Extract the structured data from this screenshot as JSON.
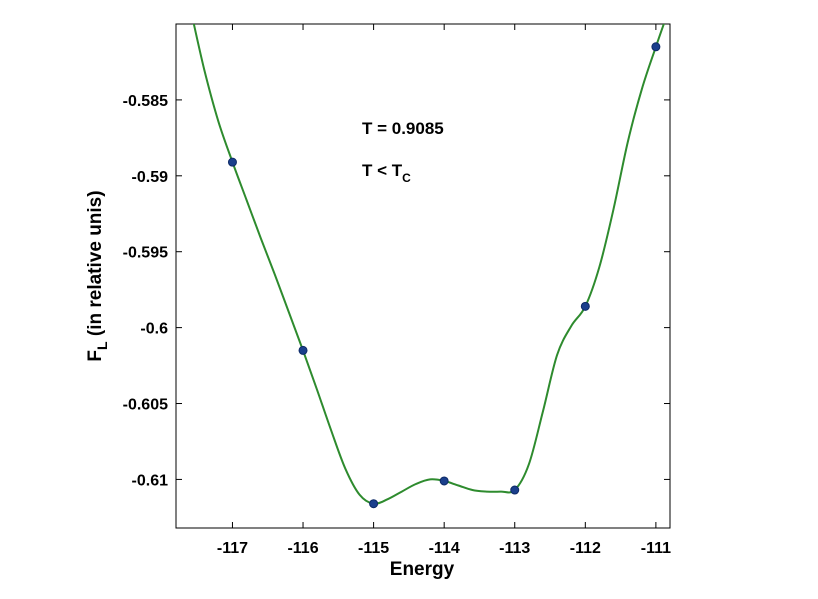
{
  "chart_data": {
    "type": "line",
    "xlabel": "Energy",
    "ylabel_main": "F",
    "ylabel_sub": "L",
    "ylabel_rest": " (in relative unis)",
    "xlim": [
      -117.8,
      -110.8
    ],
    "ylim": [
      -0.6132,
      -0.58
    ],
    "xticks": [
      -117,
      -116,
      -115,
      -114,
      -113,
      -112,
      -111
    ],
    "xtick_labels": [
      "-117",
      "-116",
      "-115",
      "-114",
      "-113",
      "-112",
      "-111"
    ],
    "yticks": [
      -0.585,
      -0.59,
      -0.595,
      -0.6,
      -0.605,
      -0.61
    ],
    "ytick_labels": [
      "-0.585",
      "-0.59",
      "-0.595",
      "-0.6",
      "-0.605",
      "-0.61"
    ],
    "annotations": {
      "temp": "T = 0.9085",
      "cond_main": "T < T",
      "cond_sub": "C"
    },
    "colors": {
      "curve": "#2e8b2e",
      "points": "#1a3f8c",
      "axes": "#000000"
    },
    "points": {
      "x": [
        -117,
        -116,
        -115,
        -114,
        -113,
        -112,
        -111
      ],
      "y": [
        -0.5891,
        -0.6015,
        -0.6116,
        -0.6101,
        -0.6107,
        -0.5986,
        -0.5815
      ]
    },
    "curve": {
      "x": [
        -117.58,
        -117.4,
        -117.2,
        -117.0,
        -116.8,
        -116.6,
        -116.4,
        -116.2,
        -116.0,
        -115.8,
        -115.6,
        -115.4,
        -115.2,
        -115.0,
        -114.8,
        -114.6,
        -114.4,
        -114.2,
        -114.0,
        -113.8,
        -113.6,
        -113.4,
        -113.2,
        -113.0,
        -112.8,
        -112.6,
        -112.4,
        -112.2,
        -112.0,
        -111.8,
        -111.6,
        -111.4,
        -111.2,
        -111.0,
        -110.85
      ],
      "y": [
        -0.5793,
        -0.583,
        -0.5864,
        -0.5891,
        -0.5916,
        -0.5941,
        -0.5965,
        -0.599,
        -0.6015,
        -0.6041,
        -0.6068,
        -0.6093,
        -0.611,
        -0.6116,
        -0.6113,
        -0.6108,
        -0.6103,
        -0.61,
        -0.6101,
        -0.6104,
        -0.6107,
        -0.6108,
        -0.6108,
        -0.6107,
        -0.609,
        -0.6055,
        -0.6018,
        -0.5999,
        -0.5986,
        -0.596,
        -0.5922,
        -0.5878,
        -0.5843,
        -0.5815,
        -0.5795
      ]
    }
  }
}
